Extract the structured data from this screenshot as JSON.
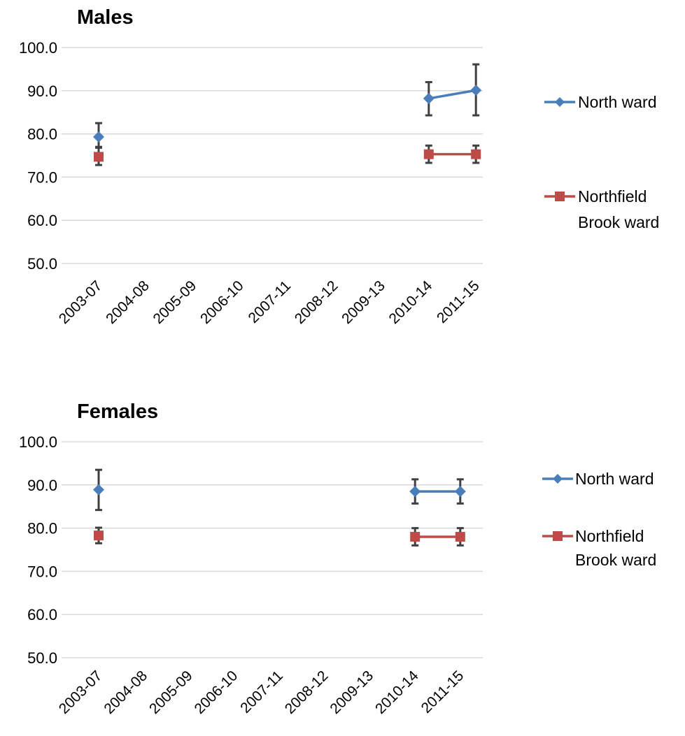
{
  "chart_data": [
    {
      "type": "line",
      "title": "Males",
      "categories": [
        "2003-07",
        "2004-08",
        "2005-09",
        "2006-10",
        "2007-11",
        "2008-12",
        "2009-13",
        "2010-14",
        "2011-15"
      ],
      "ylim": [
        50,
        100
      ],
      "yticks": [
        "100.0",
        "90.0",
        "80.0",
        "70.0",
        "60.0",
        "50.0"
      ],
      "grid": true,
      "legend_position": "right",
      "series": [
        {
          "name": "North ward",
          "color": "#4a7ebb",
          "marker": "diamond",
          "values": [
            79.3,
            null,
            null,
            null,
            null,
            null,
            null,
            88.2,
            90.1
          ],
          "error_low": [
            77.0,
            null,
            null,
            null,
            null,
            null,
            null,
            84.3,
            84.3
          ],
          "error_high": [
            82.5,
            null,
            null,
            null,
            null,
            null,
            null,
            92.0,
            96.1
          ]
        },
        {
          "name": "Northfield Brook ward",
          "color": "#be4b48",
          "marker": "square",
          "values": [
            74.7,
            null,
            null,
            null,
            null,
            null,
            null,
            75.3,
            75.3
          ],
          "error_low": [
            72.8,
            null,
            null,
            null,
            null,
            null,
            null,
            73.3,
            73.3
          ],
          "error_high": [
            76.8,
            null,
            null,
            null,
            null,
            null,
            null,
            77.3,
            77.3
          ]
        }
      ],
      "legend_lines": [
        [
          "North ward"
        ],
        [
          "Northfield",
          "Brook ward"
        ]
      ]
    },
    {
      "type": "line",
      "title": "Females",
      "categories": [
        "2003-07",
        "2004-08",
        "2005-09",
        "2006-10",
        "2007-11",
        "2008-12",
        "2009-13",
        "2010-14",
        "2011-15"
      ],
      "ylim": [
        50,
        100
      ],
      "yticks": [
        "100.0",
        "90.0",
        "80.0",
        "70.0",
        "60.0",
        "50.0"
      ],
      "grid": true,
      "legend_position": "right",
      "series": [
        {
          "name": "North ward",
          "color": "#4a7ebb",
          "marker": "diamond",
          "values": [
            88.9,
            null,
            null,
            null,
            null,
            null,
            null,
            88.5,
            88.5
          ],
          "error_low": [
            84.2,
            null,
            null,
            null,
            null,
            null,
            null,
            85.7,
            85.7
          ],
          "error_high": [
            93.5,
            null,
            null,
            null,
            null,
            null,
            null,
            91.3,
            91.3
          ]
        },
        {
          "name": "Northfield Brook ward",
          "color": "#be4b48",
          "marker": "square",
          "values": [
            78.3,
            null,
            null,
            null,
            null,
            null,
            null,
            78.0,
            78.0
          ],
          "error_low": [
            76.5,
            null,
            null,
            null,
            null,
            null,
            null,
            76.0,
            76.0
          ],
          "error_high": [
            80.1,
            null,
            null,
            null,
            null,
            null,
            null,
            80.0,
            80.0
          ]
        }
      ],
      "legend_lines": [
        [
          "North ward"
        ],
        [
          "Northfield",
          "Brook ward"
        ]
      ]
    }
  ]
}
